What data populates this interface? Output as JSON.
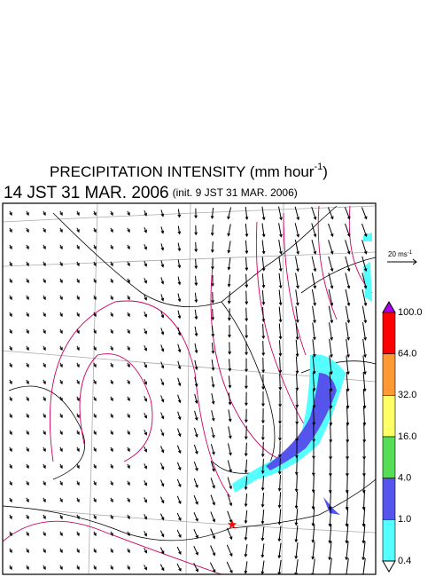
{
  "title": {
    "main": "PRECIPITATION INTENSITY (mm hour",
    "exponent": "-1",
    "close": ")"
  },
  "time": {
    "valid": "14 JST 31 MAR. 2006",
    "init": "(init. 9 JST 31 MAR. 2006)"
  },
  "vector_legend": {
    "label": "20 ms",
    "exponent": "-1"
  },
  "colorbar": {
    "labels": [
      "100.0",
      "64.0",
      "32.0",
      "16.0",
      "4.0",
      "1.0",
      "0.4"
    ],
    "colors": [
      "#ff0000",
      "#ff9933",
      "#ffff66",
      "#55dd55",
      "#5555ee",
      "#55ffff"
    ],
    "over_color": "#aa00ee",
    "under_color": "#ffffff"
  }
}
